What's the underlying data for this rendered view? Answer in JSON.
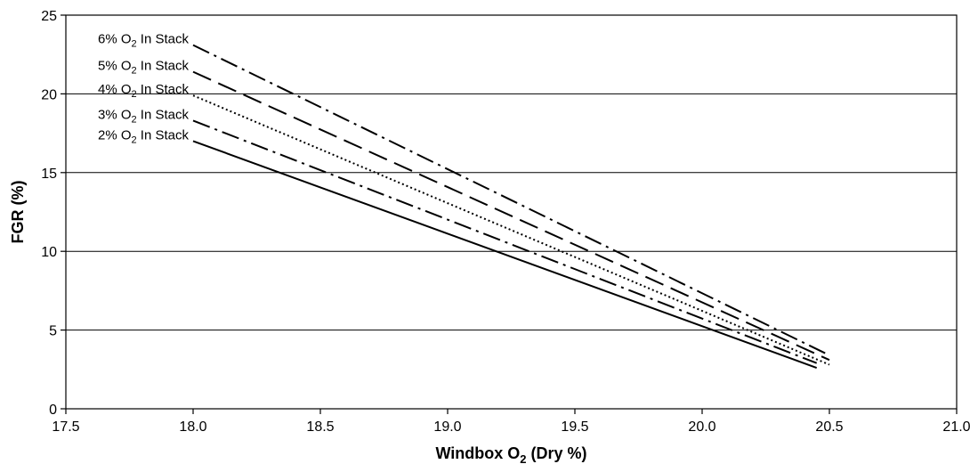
{
  "chart_data": {
    "type": "line",
    "xlabel": {
      "main": "Windbox O",
      "sub": "2",
      "rest": " (Dry %)"
    },
    "ylabel": "FGR (%)",
    "xlim": [
      17.5,
      21.0
    ],
    "ylim": [
      0,
      25
    ],
    "x_ticks": [
      "17.5",
      "18.0",
      "18.5",
      "19.0",
      "19.5",
      "20.0",
      "20.5",
      "21.0"
    ],
    "y_ticks": [
      "0",
      "5",
      "10",
      "15",
      "20",
      "25"
    ],
    "grid": "horizontal",
    "series": [
      {
        "label": {
          "pre": "6% O",
          "sub": "2",
          "post": " In Stack"
        },
        "x": [
          18.0,
          20.5
        ],
        "y": [
          23.1,
          3.4
        ],
        "style": "dash-dot"
      },
      {
        "label": {
          "pre": "5% O",
          "sub": "2",
          "post": " In Stack"
        },
        "x": [
          18.0,
          20.5
        ],
        "y": [
          21.4,
          3.1
        ],
        "style": "dashed"
      },
      {
        "label": {
          "pre": "4% O",
          "sub": "2",
          "post": " In Stack"
        },
        "x": [
          18.0,
          20.5
        ],
        "y": [
          19.9,
          2.8
        ],
        "style": "dotted"
      },
      {
        "label": {
          "pre": "3% O",
          "sub": "2",
          "post": " In Stack"
        },
        "x": [
          18.0,
          20.45
        ],
        "y": [
          18.3,
          2.9
        ],
        "style": "dash-dot"
      },
      {
        "label": {
          "pre": "2% O",
          "sub": "2",
          "post": " In Stack"
        },
        "x": [
          18.0,
          20.45
        ],
        "y": [
          17.0,
          2.6
        ],
        "style": "solid"
      }
    ]
  }
}
